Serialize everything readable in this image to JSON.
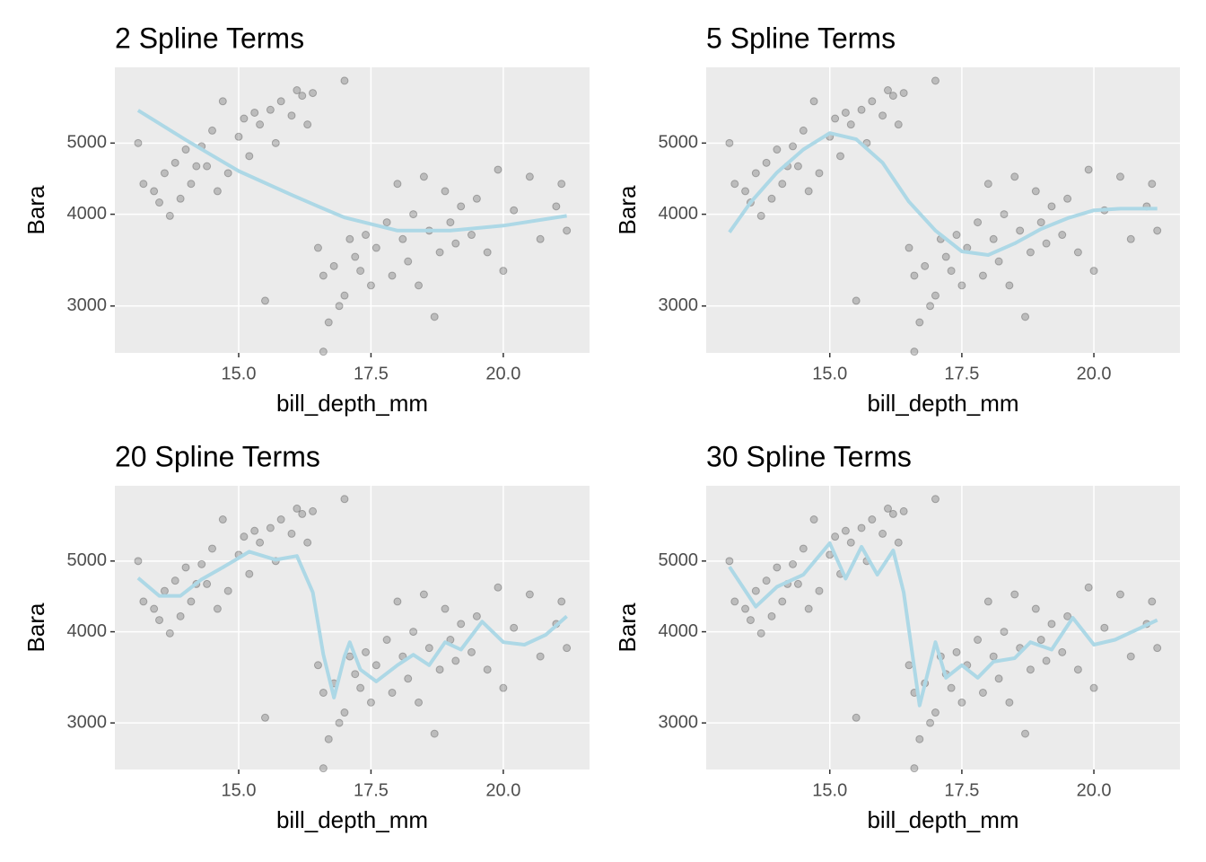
{
  "chart_data": [
    {
      "type": "scatter",
      "title": "2 Spline Terms",
      "x_label": "bill_depth_mm",
      "y_label": "Bara",
      "xlim": [
        12.66,
        21.63
      ],
      "ylim": [
        2590,
        6340
      ],
      "log_y": true,
      "grid": true,
      "xticks": [
        {
          "value": 15,
          "label": "15.0"
        },
        17.5,
        {
          "value": 20,
          "label": "20.0"
        }
      ],
      "yticks": [
        3000,
        4000,
        5000
      ],
      "point_color": "#000000",
      "x": [
        13.1,
        13.2,
        13.4,
        13.5,
        13.6,
        13.7,
        13.8,
        13.9,
        14.0,
        14.1,
        14.2,
        14.3,
        14.4,
        14.5,
        14.6,
        14.7,
        14.8,
        15.0,
        15.1,
        15.2,
        15.3,
        15.4,
        15.5,
        15.6,
        15.7,
        15.8,
        16.0,
        16.1,
        16.2,
        16.3,
        16.4,
        16.5,
        16.6,
        16.6,
        16.7,
        16.8,
        16.9,
        17.0,
        17.0,
        17.1,
        17.2,
        17.3,
        17.4,
        17.5,
        17.6,
        17.8,
        17.9,
        18.0,
        18.1,
        18.2,
        18.3,
        18.4,
        18.5,
        18.6,
        18.7,
        18.8,
        18.9,
        19.0,
        19.1,
        19.2,
        19.4,
        19.5,
        19.7,
        19.9,
        20.0,
        20.2,
        20.5,
        20.7,
        21.0,
        21.1,
        21.2
      ],
      "y": [
        5000,
        4400,
        4300,
        4150,
        4550,
        3980,
        4700,
        4200,
        4900,
        4400,
        4650,
        4950,
        4650,
        5200,
        4300,
        5700,
        4550,
        5100,
        5400,
        4800,
        5500,
        5300,
        3050,
        5550,
        5000,
        5700,
        5450,
        5900,
        5800,
        5300,
        5850,
        3600,
        3300,
        2600,
        2850,
        3400,
        3000,
        3100,
        6080,
        3700,
        3500,
        3350,
        3750,
        3200,
        3600,
        3900,
        3300,
        4400,
        3700,
        3450,
        4000,
        3200,
        4500,
        3800,
        2900,
        3550,
        4300,
        3900,
        3650,
        4100,
        3750,
        4200,
        3550,
        4600,
        3350,
        4050,
        4500,
        3700,
        4100,
        4400,
        3800
      ],
      "line": {
        "color": "#add8e6",
        "x": [
          13.1,
          14.0,
          15.0,
          16.0,
          16.5,
          17.0,
          18.0,
          19.0,
          20.0,
          21.2
        ],
        "y": [
          5540,
          5050,
          4580,
          4250,
          4100,
          3960,
          3800,
          3800,
          3860,
          3980
        ]
      }
    },
    {
      "type": "scatter",
      "title": "5 Spline Terms",
      "x_label": "bill_depth_mm",
      "y_label": "Bara",
      "xlim": [
        12.66,
        21.63
      ],
      "ylim": [
        2590,
        6340
      ],
      "log_y": true,
      "grid": true,
      "xticks": [
        {
          "value": 15,
          "label": "15.0"
        },
        17.5,
        {
          "value": 20,
          "label": "20.0"
        }
      ],
      "yticks": [
        3000,
        4000,
        5000
      ],
      "point_color": "#000000",
      "x": [
        13.1,
        13.2,
        13.4,
        13.5,
        13.6,
        13.7,
        13.8,
        13.9,
        14.0,
        14.1,
        14.2,
        14.3,
        14.4,
        14.5,
        14.6,
        14.7,
        14.8,
        15.0,
        15.1,
        15.2,
        15.3,
        15.4,
        15.5,
        15.6,
        15.7,
        15.8,
        16.0,
        16.1,
        16.2,
        16.3,
        16.4,
        16.5,
        16.6,
        16.6,
        16.7,
        16.8,
        16.9,
        17.0,
        17.0,
        17.1,
        17.2,
        17.3,
        17.4,
        17.5,
        17.6,
        17.8,
        17.9,
        18.0,
        18.1,
        18.2,
        18.3,
        18.4,
        18.5,
        18.6,
        18.7,
        18.8,
        18.9,
        19.0,
        19.1,
        19.2,
        19.4,
        19.5,
        19.7,
        19.9,
        20.0,
        20.2,
        20.5,
        20.7,
        21.0,
        21.1,
        21.2
      ],
      "y": [
        5000,
        4400,
        4300,
        4150,
        4550,
        3980,
        4700,
        4200,
        4900,
        4400,
        4650,
        4950,
        4650,
        5200,
        4300,
        5700,
        4550,
        5100,
        5400,
        4800,
        5500,
        5300,
        3050,
        5550,
        5000,
        5700,
        5450,
        5900,
        5800,
        5300,
        5850,
        3600,
        3300,
        2600,
        2850,
        3400,
        3000,
        3100,
        6080,
        3700,
        3500,
        3350,
        3750,
        3200,
        3600,
        3900,
        3300,
        4400,
        3700,
        3450,
        4000,
        3200,
        4500,
        3800,
        2900,
        3550,
        4300,
        3900,
        3650,
        4100,
        3750,
        4200,
        3550,
        4600,
        3350,
        4050,
        4500,
        3700,
        4100,
        4400,
        3800
      ],
      "line": {
        "color": "#add8e6",
        "x": [
          13.1,
          13.5,
          14.0,
          14.5,
          15.0,
          15.5,
          16.0,
          16.5,
          17.0,
          17.5,
          18.0,
          18.5,
          19.0,
          19.5,
          20.0,
          20.5,
          21.2
        ],
        "y": [
          3780,
          4150,
          4560,
          4900,
          5160,
          5060,
          4700,
          4160,
          3800,
          3560,
          3520,
          3650,
          3820,
          3950,
          4050,
          4070,
          4070
        ]
      }
    },
    {
      "type": "scatter",
      "title": "20 Spline Terms",
      "x_label": "bill_depth_mm",
      "y_label": "Bara",
      "xlim": [
        12.66,
        21.63
      ],
      "ylim": [
        2590,
        6340
      ],
      "log_y": true,
      "grid": true,
      "xticks": [
        {
          "value": 15,
          "label": "15.0"
        },
        17.5,
        {
          "value": 20,
          "label": "20.0"
        }
      ],
      "yticks": [
        3000,
        4000,
        5000
      ],
      "point_color": "#000000",
      "x": [
        13.1,
        13.2,
        13.4,
        13.5,
        13.6,
        13.7,
        13.8,
        13.9,
        14.0,
        14.1,
        14.2,
        14.3,
        14.4,
        14.5,
        14.6,
        14.7,
        14.8,
        15.0,
        15.1,
        15.2,
        15.3,
        15.4,
        15.5,
        15.6,
        15.7,
        15.8,
        16.0,
        16.1,
        16.2,
        16.3,
        16.4,
        16.5,
        16.6,
        16.6,
        16.7,
        16.8,
        16.9,
        17.0,
        17.0,
        17.1,
        17.2,
        17.3,
        17.4,
        17.5,
        17.6,
        17.8,
        17.9,
        18.0,
        18.1,
        18.2,
        18.3,
        18.4,
        18.5,
        18.6,
        18.7,
        18.8,
        18.9,
        19.0,
        19.1,
        19.2,
        19.4,
        19.5,
        19.7,
        19.9,
        20.0,
        20.2,
        20.5,
        20.7,
        21.0,
        21.1,
        21.2
      ],
      "y": [
        5000,
        4400,
        4300,
        4150,
        4550,
        3980,
        4700,
        4200,
        4900,
        4400,
        4650,
        4950,
        4650,
        5200,
        4300,
        5700,
        4550,
        5100,
        5400,
        4800,
        5500,
        5300,
        3050,
        5550,
        5000,
        5700,
        5450,
        5900,
        5800,
        5300,
        5850,
        3600,
        3300,
        2600,
        2850,
        3400,
        3000,
        3100,
        6080,
        3700,
        3500,
        3350,
        3750,
        3200,
        3600,
        3900,
        3300,
        4400,
        3700,
        3450,
        4000,
        3200,
        4500,
        3800,
        2900,
        3550,
        4300,
        3900,
        3650,
        4100,
        3750,
        4200,
        3550,
        4600,
        3350,
        4050,
        4500,
        3700,
        4100,
        4400,
        3800
      ],
      "line": {
        "color": "#add8e6",
        "x": [
          13.1,
          13.5,
          13.9,
          14.3,
          14.7,
          15.2,
          15.7,
          16.1,
          16.4,
          16.6,
          16.8,
          17.0,
          17.1,
          17.3,
          17.6,
          18.0,
          18.3,
          18.6,
          18.9,
          19.2,
          19.6,
          20.0,
          20.4,
          20.8,
          21.2
        ],
        "y": [
          4740,
          4480,
          4480,
          4720,
          4900,
          5150,
          5020,
          5080,
          4530,
          3720,
          3250,
          3700,
          3870,
          3550,
          3420,
          3600,
          3720,
          3600,
          3870,
          3780,
          4130,
          3870,
          3840,
          3960,
          4200
        ]
      }
    },
    {
      "type": "scatter",
      "title": "30 Spline Terms",
      "x_label": "bill_depth_mm",
      "y_label": "Bara",
      "xlim": [
        12.66,
        21.63
      ],
      "ylim": [
        2590,
        6340
      ],
      "log_y": true,
      "grid": true,
      "xticks": [
        {
          "value": 15,
          "label": "15.0"
        },
        17.5,
        {
          "value": 20,
          "label": "20.0"
        }
      ],
      "yticks": [
        3000,
        4000,
        5000
      ],
      "point_color": "#000000",
      "x": [
        13.1,
        13.2,
        13.4,
        13.5,
        13.6,
        13.7,
        13.8,
        13.9,
        14.0,
        14.1,
        14.2,
        14.3,
        14.4,
        14.5,
        14.6,
        14.7,
        14.8,
        15.0,
        15.1,
        15.2,
        15.3,
        15.4,
        15.5,
        15.6,
        15.7,
        15.8,
        16.0,
        16.1,
        16.2,
        16.3,
        16.4,
        16.5,
        16.6,
        16.6,
        16.7,
        16.8,
        16.9,
        17.0,
        17.0,
        17.1,
        17.2,
        17.3,
        17.4,
        17.5,
        17.6,
        17.8,
        17.9,
        18.0,
        18.1,
        18.2,
        18.3,
        18.4,
        18.5,
        18.6,
        18.7,
        18.8,
        18.9,
        19.0,
        19.1,
        19.2,
        19.4,
        19.5,
        19.7,
        19.9,
        20.0,
        20.2,
        20.5,
        20.7,
        21.0,
        21.1,
        21.2
      ],
      "y": [
        5000,
        4400,
        4300,
        4150,
        4550,
        3980,
        4700,
        4200,
        4900,
        4400,
        4650,
        4950,
        4650,
        5200,
        4300,
        5700,
        4550,
        5100,
        5400,
        4800,
        5500,
        5300,
        3050,
        5550,
        5000,
        5700,
        5450,
        5900,
        5800,
        5300,
        5850,
        3600,
        3300,
        2600,
        2850,
        3400,
        3000,
        3100,
        6080,
        3700,
        3500,
        3350,
        3750,
        3200,
        3600,
        3900,
        3300,
        4400,
        3700,
        3450,
        4000,
        3200,
        4500,
        3800,
        2900,
        3550,
        4300,
        3900,
        3650,
        4100,
        3750,
        4200,
        3550,
        4600,
        3350,
        4050,
        4500,
        3700,
        4100,
        4400,
        3800
      ],
      "line": {
        "color": "#add8e6",
        "x": [
          13.1,
          13.6,
          14.0,
          14.5,
          15.0,
          15.3,
          15.6,
          15.9,
          16.2,
          16.4,
          16.7,
          17.0,
          17.2,
          17.5,
          17.8,
          18.1,
          18.5,
          18.8,
          19.2,
          19.6,
          20.0,
          20.4,
          21.2
        ],
        "y": [
          4910,
          4330,
          4610,
          4790,
          5290,
          4730,
          5230,
          4790,
          5170,
          4530,
          3170,
          3870,
          3460,
          3600,
          3460,
          3640,
          3680,
          3870,
          3780,
          4180,
          3840,
          3900,
          4150
        ]
      }
    }
  ]
}
